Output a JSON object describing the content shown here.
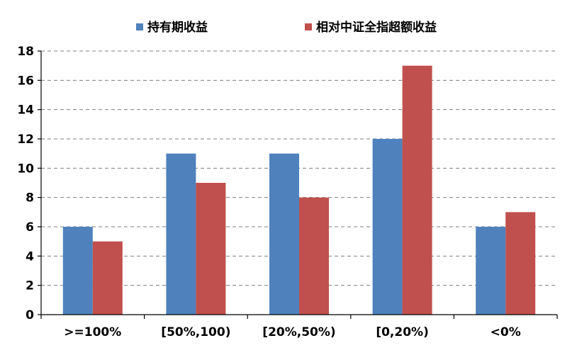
{
  "chart_data": {
    "type": "bar",
    "categories": [
      ">=100%",
      "[50%,100)",
      "[20%,50%)",
      "[0,20%)",
      "<0%"
    ],
    "series": [
      {
        "name": "持有期收益",
        "values": [
          6,
          11,
          11,
          12,
          6
        ],
        "color": "#4f81bd"
      },
      {
        "name": "相对中证全指超额收益",
        "values": [
          5,
          9,
          8,
          17,
          7
        ],
        "color": "#c0504d"
      }
    ],
    "ylim": [
      0,
      18
    ],
    "yticks": [
      0,
      2,
      4,
      6,
      8,
      10,
      12,
      14,
      16,
      18
    ],
    "grid": true,
    "legend_position": "top-center"
  }
}
